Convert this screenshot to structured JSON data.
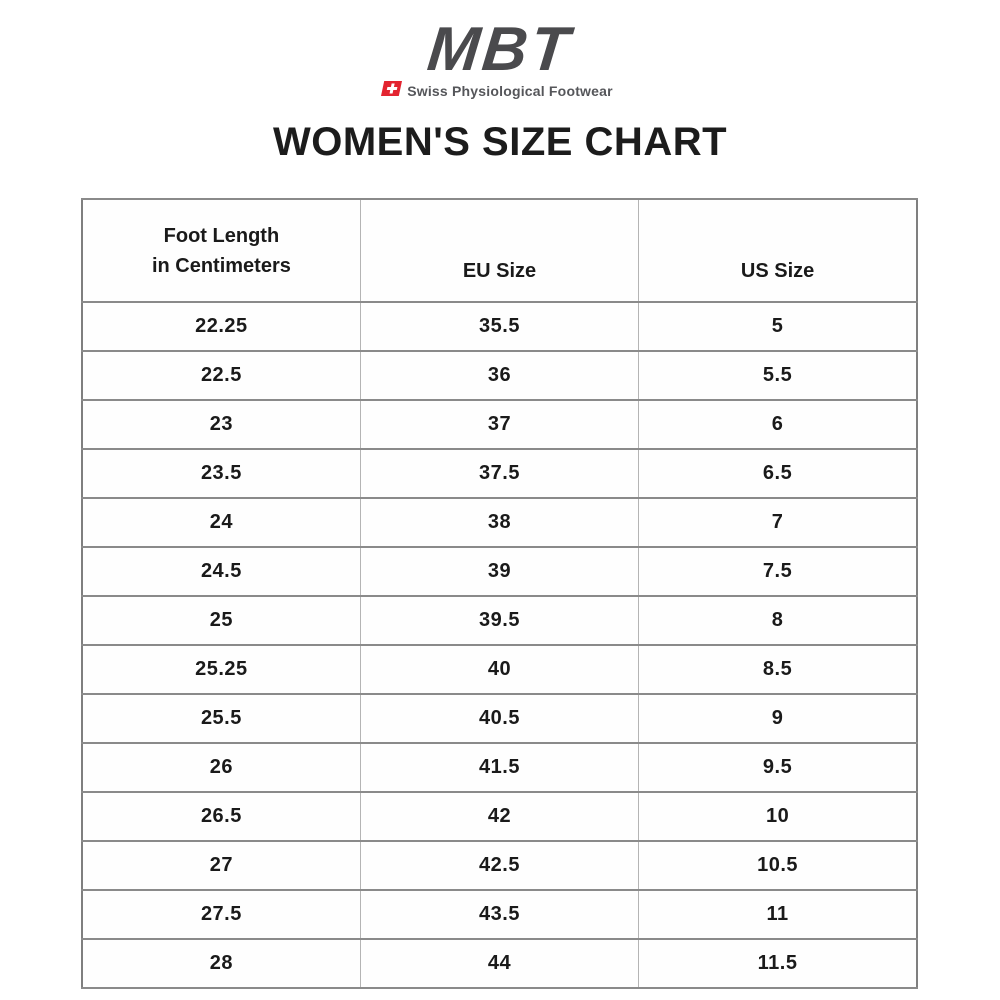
{
  "logo": {
    "brand": "MBT",
    "tagline": "Swiss Physiological Footwear",
    "colors": {
      "brand_gray": "#4a4a4d",
      "flag_red": "#e32430",
      "tagline_gray": "#55565a"
    }
  },
  "title": "WOMEN'S SIZE CHART",
  "size_table": {
    "columns": [
      {
        "label_line1": "Foot Length",
        "label_line2": "in Centimeters"
      },
      {
        "label": "EU Size"
      },
      {
        "label": "US Size"
      }
    ],
    "rows": [
      {
        "cm": "22.25",
        "eu": "35.5",
        "us": "5"
      },
      {
        "cm": "22.5",
        "eu": "36",
        "us": "5.5"
      },
      {
        "cm": "23",
        "eu": "37",
        "us": "6"
      },
      {
        "cm": "23.5",
        "eu": "37.5",
        "us": "6.5"
      },
      {
        "cm": "24",
        "eu": "38",
        "us": "7"
      },
      {
        "cm": "24.5",
        "eu": "39",
        "us": "7.5"
      },
      {
        "cm": "25",
        "eu": "39.5",
        "us": "8"
      },
      {
        "cm": "25.25",
        "eu": "40",
        "us": "8.5"
      },
      {
        "cm": "25.5",
        "eu": "40.5",
        "us": "9"
      },
      {
        "cm": "26",
        "eu": "41.5",
        "us": "9.5"
      },
      {
        "cm": "26.5",
        "eu": "42",
        "us": "10"
      },
      {
        "cm": "27",
        "eu": "42.5",
        "us": "10.5"
      },
      {
        "cm": "27.5",
        "eu": "43.5",
        "us": "11"
      },
      {
        "cm": "28",
        "eu": "44",
        "us": "11.5"
      }
    ]
  },
  "chart_data": {
    "type": "table",
    "title": "WOMEN'S SIZE CHART",
    "columns": [
      "Foot Length in Centimeters",
      "EU Size",
      "US Size"
    ],
    "rows": [
      [
        22.25,
        35.5,
        5
      ],
      [
        22.5,
        36,
        5.5
      ],
      [
        23,
        37,
        6
      ],
      [
        23.5,
        37.5,
        6.5
      ],
      [
        24,
        38,
        7
      ],
      [
        24.5,
        39,
        7.5
      ],
      [
        25,
        39.5,
        8
      ],
      [
        25.25,
        40,
        8.5
      ],
      [
        25.5,
        40.5,
        9
      ],
      [
        26,
        41.5,
        9.5
      ],
      [
        26.5,
        42,
        10
      ],
      [
        27,
        42.5,
        10.5
      ],
      [
        27.5,
        43.5,
        11
      ],
      [
        28,
        44,
        11.5
      ]
    ]
  }
}
